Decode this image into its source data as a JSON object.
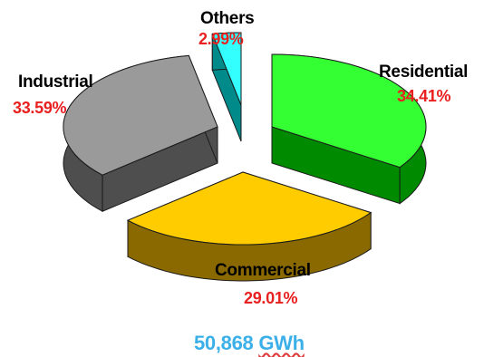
{
  "chart_data": {
    "type": "pie",
    "title": "",
    "slices": [
      {
        "label": "Residential",
        "value_label": "34.41%",
        "value": 34.41,
        "top_color": "#33ff33",
        "side_color": "#008a00"
      },
      {
        "label": "Commercial",
        "value_label": "29.01%",
        "value": 29.01,
        "top_color": "#ffcc00",
        "side_color": "#8a6a00"
      },
      {
        "label": "Industrial",
        "value_label": "33.59%",
        "value": 33.59,
        "top_color": "#9a9a9a",
        "side_color": "#4e4e4e"
      },
      {
        "label": "Others",
        "value_label": "2.99%",
        "value": 2.99,
        "top_color": "#33ffff",
        "side_color": "#008a8a"
      }
    ],
    "percent_color": "#e82020",
    "total": {
      "value": "50,868",
      "unit": "GWh",
      "color": "#3bb0e8"
    }
  }
}
